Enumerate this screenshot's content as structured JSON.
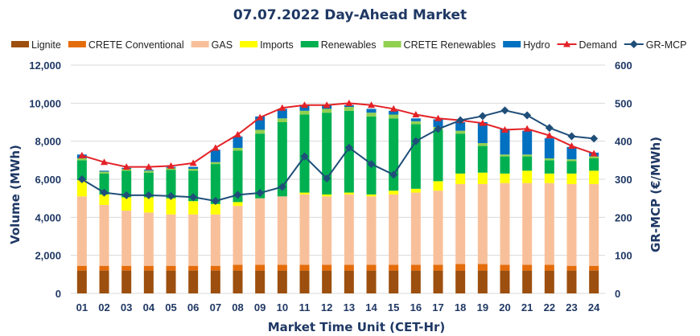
{
  "chart_data": {
    "type": "bar",
    "stacked": true,
    "title": "07.07.2022  Day-Ahead Market",
    "xlabel": "Market Time Unit (CET-Hr)",
    "ylabel": "Volume (MWh)",
    "y2label": "GR-MCP (€/MWh)",
    "ylim": [
      0,
      12000
    ],
    "y2lim": [
      0,
      600
    ],
    "yticks": [
      "0",
      "2,000",
      "4,000",
      "6,000",
      "8,000",
      "10,000",
      "12,000"
    ],
    "y2ticks": [
      "0",
      "100",
      "200",
      "300",
      "400",
      "500",
      "600"
    ],
    "categories": [
      "01",
      "02",
      "03",
      "04",
      "05",
      "06",
      "07",
      "08",
      "09",
      "10",
      "11",
      "12",
      "13",
      "14",
      "15",
      "16",
      "17",
      "18",
      "19",
      "20",
      "21",
      "22",
      "23",
      "24"
    ],
    "series": [
      {
        "name": "Lignite",
        "color": "#9c4f0e",
        "values": [
          1200,
          1200,
          1200,
          1200,
          1200,
          1200,
          1200,
          1200,
          1200,
          1200,
          1200,
          1200,
          1200,
          1200,
          1200,
          1200,
          1200,
          1200,
          1200,
          1200,
          1200,
          1200,
          1200,
          1200
        ]
      },
      {
        "name": "CRETE Conventional",
        "color": "#e46c0a",
        "values": [
          250,
          250,
          250,
          250,
          250,
          250,
          250,
          300,
          300,
          300,
          300,
          300,
          300,
          300,
          300,
          300,
          300,
          350,
          350,
          300,
          300,
          300,
          250,
          250
        ]
      },
      {
        "name": "GAS",
        "color": "#f8c09a",
        "values": [
          3650,
          3200,
          2900,
          2800,
          2700,
          2700,
          2700,
          3100,
          3500,
          3600,
          3700,
          3600,
          3700,
          3600,
          3700,
          3800,
          3900,
          4200,
          4200,
          4300,
          4300,
          4300,
          4300,
          4300
        ]
      },
      {
        "name": "Imports",
        "color": "#ffff00",
        "values": [
          850,
          550,
          700,
          800,
          850,
          700,
          550,
          200,
          0,
          0,
          100,
          100,
          100,
          100,
          200,
          200,
          500,
          550,
          600,
          500,
          650,
          500,
          550,
          700
        ]
      },
      {
        "name": "Renewables",
        "color": "#00b050",
        "values": [
          1050,
          1100,
          1400,
          1300,
          1500,
          1600,
          2100,
          2700,
          3400,
          3900,
          4100,
          4300,
          4300,
          4100,
          3800,
          3400,
          2700,
          2100,
          1400,
          900,
          750,
          700,
          650,
          650
        ]
      },
      {
        "name": "CRETE Renewables",
        "color": "#92d050",
        "values": [
          100,
          100,
          100,
          100,
          100,
          100,
          100,
          150,
          200,
          200,
          200,
          200,
          200,
          200,
          200,
          150,
          150,
          150,
          150,
          100,
          100,
          100,
          100,
          100
        ]
      },
      {
        "name": "Hydro",
        "color": "#0070c0",
        "values": [
          200,
          50,
          50,
          50,
          50,
          100,
          650,
          600,
          700,
          500,
          300,
          200,
          100,
          200,
          200,
          150,
          400,
          450,
          1100,
          1350,
          1250,
          1050,
          650,
          200
        ]
      }
    ],
    "lines": [
      {
        "name": "Demand",
        "axis": "left",
        "color": "#e32227",
        "marker": "triangle",
        "values": [
          7250,
          6900,
          6650,
          6650,
          6700,
          6850,
          7650,
          8350,
          9250,
          9750,
          9900,
          9900,
          10000,
          9900,
          9700,
          9400,
          9200,
          9100,
          8950,
          8600,
          8650,
          8300,
          7750,
          7350
        ]
      },
      {
        "name": "GR-MCP",
        "axis": "right",
        "color": "#1f4e79",
        "marker": "diamond",
        "values": [
          300,
          265,
          258,
          258,
          256,
          253,
          243,
          259,
          264,
          280,
          360,
          302,
          383,
          340,
          312,
          400,
          432,
          455,
          466,
          481,
          468,
          435,
          413,
          407
        ]
      }
    ]
  }
}
